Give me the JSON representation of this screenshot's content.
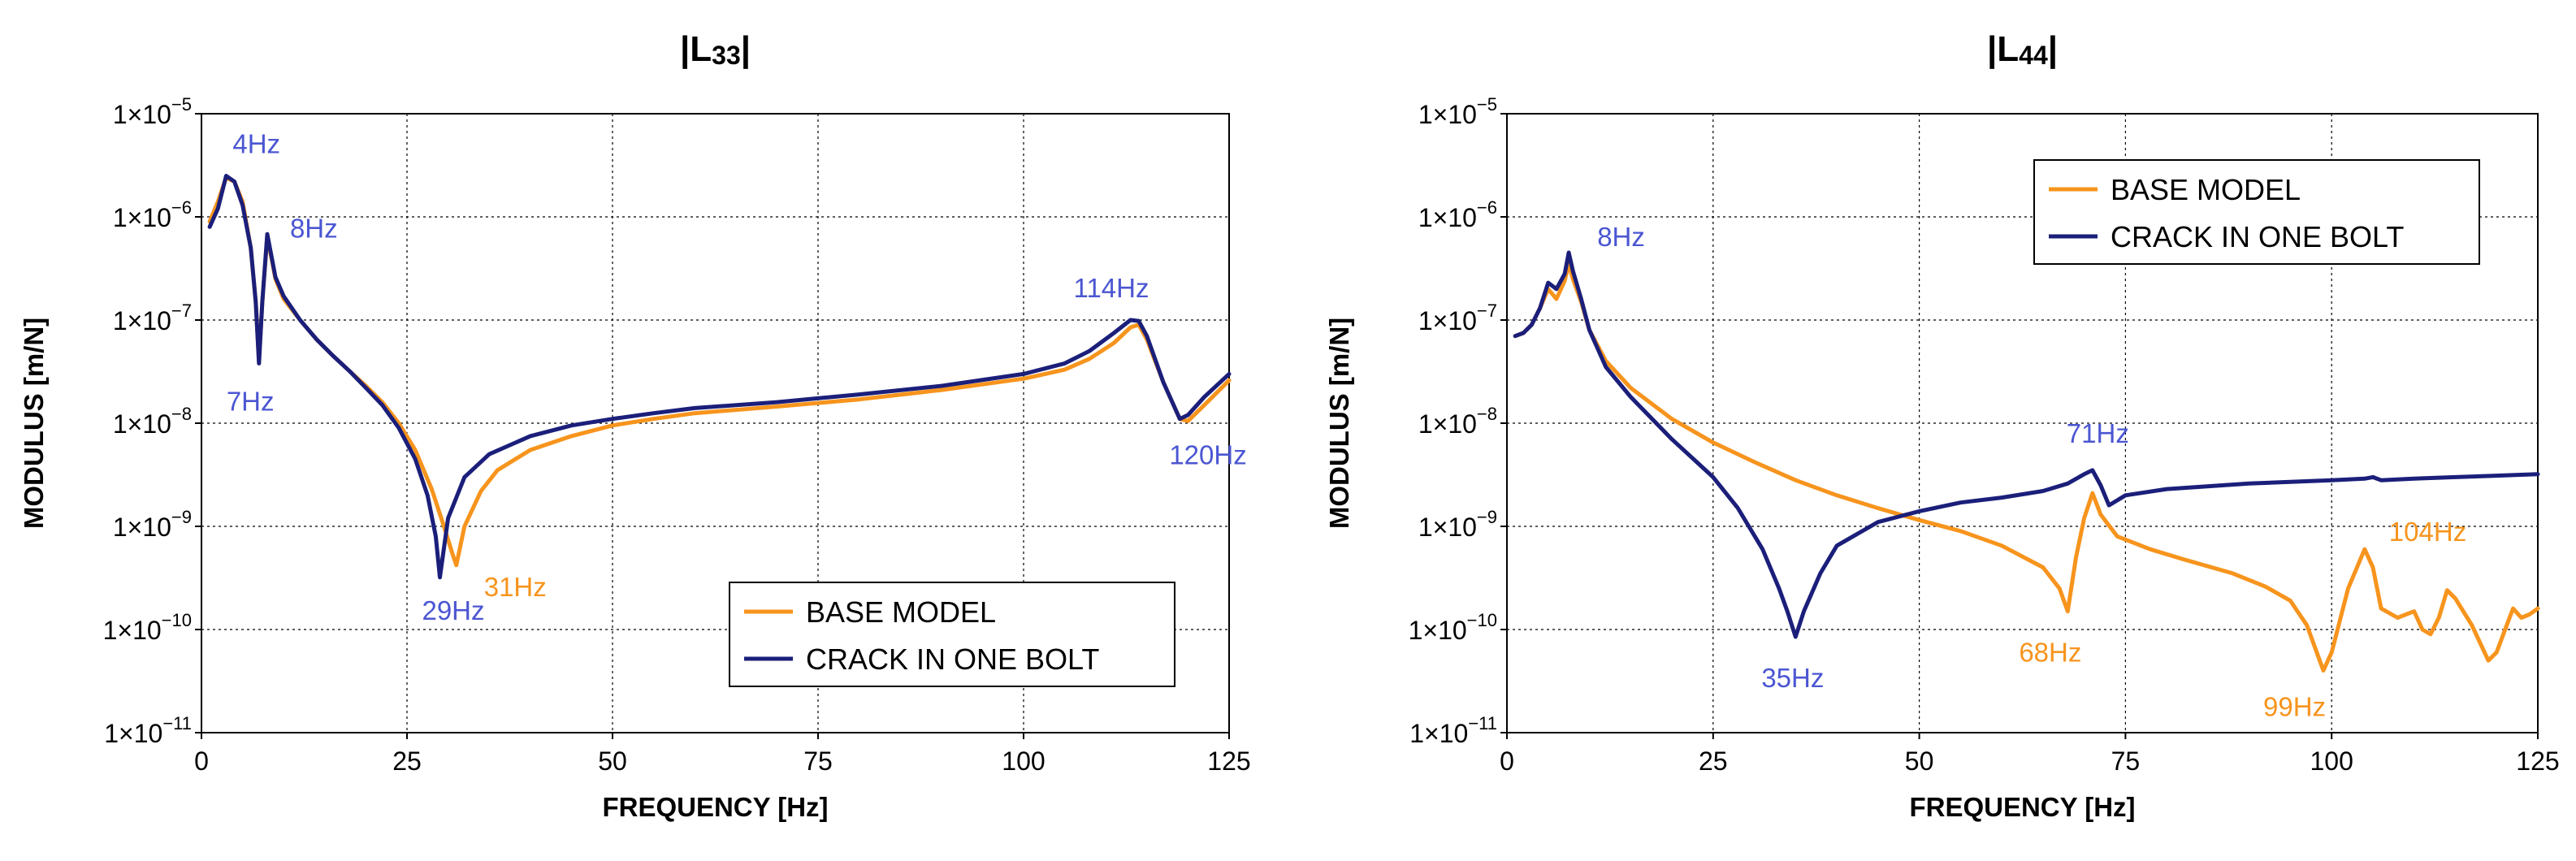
{
  "chart_data": [
    {
      "type": "line",
      "title": {
        "letter": "L",
        "subscript": "33"
      },
      "xlabel": "FREQUENCY [Hz]",
      "ylabel": "MODULUS [m/N]",
      "yscale": "log",
      "xlim": [
        0,
        125
      ],
      "ylim_exp": [
        -11,
        -5
      ],
      "xticks": [
        "0",
        "25",
        "50",
        "75",
        "100",
        "125"
      ],
      "yticks": [
        {
          "base": "1×10",
          "exp": "-5"
        },
        {
          "base": "1×10",
          "exp": "-6"
        },
        {
          "base": "1×10",
          "exp": "-7"
        },
        {
          "base": "1×10",
          "exp": "-8"
        },
        {
          "base": "1×10",
          "exp": "-9"
        },
        {
          "base": "1×10",
          "exp": "-10"
        },
        {
          "base": "1×10",
          "exp": "-11"
        }
      ],
      "grid": true,
      "legend_position": "bottom-right",
      "series": [
        {
          "name": "BASE MODEL",
          "color": "#F7941D",
          "points": [
            [
              1,
              9e-07
            ],
            [
              2,
              1.4e-06
            ],
            [
              3,
              2.4e-06
            ],
            [
              4,
              2.2e-06
            ],
            [
              5,
              1.4e-06
            ],
            [
              6,
              5e-07
            ],
            [
              6.6,
              1.5e-07
            ],
            [
              7,
              4e-08
            ],
            [
              7.4,
              1.5e-07
            ],
            [
              8,
              6.5e-07
            ],
            [
              9,
              2.5e-07
            ],
            [
              10,
              1.6e-07
            ],
            [
              12,
              1e-07
            ],
            [
              14,
              6.5e-08
            ],
            [
              16,
              4.5e-08
            ],
            [
              18,
              3.2e-08
            ],
            [
              20,
              2.3e-08
            ],
            [
              22,
              1.6e-08
            ],
            [
              24,
              1e-08
            ],
            [
              26,
              5.5e-09
            ],
            [
              28,
              2.3e-09
            ],
            [
              29.5,
              1e-09
            ],
            [
              30.5,
              5.5e-10
            ],
            [
              31,
              4.2e-10
            ],
            [
              32,
              1e-09
            ],
            [
              34,
              2.2e-09
            ],
            [
              36,
              3.5e-09
            ],
            [
              40,
              5.5e-09
            ],
            [
              45,
              7.5e-09
            ],
            [
              50,
              9.5e-09
            ],
            [
              55,
              1.1e-08
            ],
            [
              60,
              1.25e-08
            ],
            [
              70,
              1.45e-08
            ],
            [
              80,
              1.7e-08
            ],
            [
              90,
              2.1e-08
            ],
            [
              100,
              2.7e-08
            ],
            [
              105,
              3.3e-08
            ],
            [
              108,
              4.2e-08
            ],
            [
              111,
              6e-08
            ],
            [
              113,
              8.5e-08
            ],
            [
              114,
              9e-08
            ],
            [
              115,
              6.5e-08
            ],
            [
              117,
              2.5e-08
            ],
            [
              119,
              1.1e-08
            ],
            [
              120,
              1.05e-08
            ],
            [
              122,
              1.5e-08
            ],
            [
              125,
              2.6e-08
            ]
          ]
        },
        {
          "name": "CRACK IN ONE BOLT",
          "color": "#1B1F7A",
          "points": [
            [
              1,
              8e-07
            ],
            [
              2,
              1.2e-06
            ],
            [
              3,
              2.5e-06
            ],
            [
              4,
              2.2e-06
            ],
            [
              5,
              1.3e-06
            ],
            [
              6,
              5e-07
            ],
            [
              6.6,
              1.5e-07
            ],
            [
              7,
              3.8e-08
            ],
            [
              7.4,
              1.5e-07
            ],
            [
              8,
              6.8e-07
            ],
            [
              9,
              2.6e-07
            ],
            [
              10,
              1.7e-07
            ],
            [
              12,
              1e-07
            ],
            [
              14,
              6.5e-08
            ],
            [
              16,
              4.5e-08
            ],
            [
              18,
              3.2e-08
            ],
            [
              20,
              2.2e-08
            ],
            [
              22,
              1.5e-08
            ],
            [
              24,
              9e-09
            ],
            [
              26,
              4.5e-09
            ],
            [
              27.5,
              2e-09
            ],
            [
              28.5,
              8e-10
            ],
            [
              29,
              3.2e-10
            ],
            [
              30,
              1.2e-09
            ],
            [
              32,
              3e-09
            ],
            [
              35,
              5e-09
            ],
            [
              40,
              7.5e-09
            ],
            [
              45,
              9.5e-09
            ],
            [
              50,
              1.1e-08
            ],
            [
              55,
              1.25e-08
            ],
            [
              60,
              1.4e-08
            ],
            [
              70,
              1.6e-08
            ],
            [
              80,
              1.9e-08
            ],
            [
              90,
              2.3e-08
            ],
            [
              100,
              3e-08
            ],
            [
              105,
              3.8e-08
            ],
            [
              108,
              5e-08
            ],
            [
              111,
              7.5e-08
            ],
            [
              113,
              1e-07
            ],
            [
              114,
              9.8e-08
            ],
            [
              115,
              7e-08
            ],
            [
              117,
              2.5e-08
            ],
            [
              119,
              1.1e-08
            ],
            [
              120,
              1.2e-08
            ],
            [
              122,
              1.8e-08
            ],
            [
              125,
              3e-08
            ]
          ]
        }
      ],
      "annotations": [
        {
          "text": "4Hz",
          "x": 3,
          "y": 2.5e-06,
          "series": 1
        },
        {
          "text": "8Hz",
          "x": 8,
          "y": 6.8e-07,
          "series": 1
        },
        {
          "text": "7Hz",
          "x": 7,
          "y": 3.8e-08,
          "series": 1
        },
        {
          "text": "114Hz",
          "x": 113,
          "y": 1e-07,
          "series": 1
        },
        {
          "text": "120Hz",
          "x": 119.5,
          "y": 1.1e-08,
          "series": 1
        },
        {
          "text": "29Hz",
          "x": 29,
          "y": 3.2e-10,
          "series": 1
        },
        {
          "text": "31Hz",
          "x": 31,
          "y": 4.2e-10,
          "series": 0
        }
      ]
    },
    {
      "type": "line",
      "title": {
        "letter": "L",
        "subscript": "44"
      },
      "xlabel": "FREQUENCY [Hz]",
      "ylabel": "MODULUS [m/N]",
      "yscale": "log",
      "xlim": [
        0,
        125
      ],
      "ylim_exp": [
        -11,
        -5
      ],
      "xticks": [
        "0",
        "25",
        "50",
        "75",
        "100",
        "125"
      ],
      "yticks": [
        {
          "base": "1×10",
          "exp": "-5"
        },
        {
          "base": "1×10",
          "exp": "-6"
        },
        {
          "base": "1×10",
          "exp": "-7"
        },
        {
          "base": "1×10",
          "exp": "-8"
        },
        {
          "base": "1×10",
          "exp": "-9"
        },
        {
          "base": "1×10",
          "exp": "-10"
        },
        {
          "base": "1×10",
          "exp": "-11"
        }
      ],
      "grid": true,
      "legend_position": "top-right",
      "series": [
        {
          "name": "BASE MODEL",
          "color": "#F7941D",
          "points": [
            [
              1,
              7e-08
            ],
            [
              2,
              7.5e-08
            ],
            [
              3,
              9e-08
            ],
            [
              4,
              1.3e-07
            ],
            [
              5,
              2e-07
            ],
            [
              6,
              1.6e-07
            ],
            [
              7,
              2.4e-07
            ],
            [
              7.5,
              3.5e-07
            ],
            [
              8,
              2.5e-07
            ],
            [
              9,
              1.5e-07
            ],
            [
              10,
              8e-08
            ],
            [
              12,
              4e-08
            ],
            [
              15,
              2.2e-08
            ],
            [
              20,
              1.1e-08
            ],
            [
              25,
              6.5e-09
            ],
            [
              30,
              4.2e-09
            ],
            [
              35,
              2.8e-09
            ],
            [
              40,
              2e-09
            ],
            [
              45,
              1.5e-09
            ],
            [
              50,
              1.15e-09
            ],
            [
              55,
              9e-10
            ],
            [
              60,
              6.5e-10
            ],
            [
              65,
              4e-10
            ],
            [
              67,
              2.5e-10
            ],
            [
              68,
              1.5e-10
            ],
            [
              69,
              5e-10
            ],
            [
              70,
              1.2e-09
            ],
            [
              71,
              2.1e-09
            ],
            [
              72,
              1.3e-09
            ],
            [
              74,
              8e-10
            ],
            [
              78,
              6e-10
            ],
            [
              82,
              4.8e-10
            ],
            [
              88,
              3.5e-10
            ],
            [
              92,
              2.6e-10
            ],
            [
              95,
              1.9e-10
            ],
            [
              97,
              1.1e-10
            ],
            [
              99,
              4e-11
            ],
            [
              100,
              6e-11
            ],
            [
              102,
              2.5e-10
            ],
            [
              104,
              6e-10
            ],
            [
              105,
              4e-10
            ],
            [
              106,
              1.6e-10
            ],
            [
              108,
              1.3e-10
            ],
            [
              110,
              1.5e-10
            ],
            [
              111,
              1e-10
            ],
            [
              112,
              9e-11
            ],
            [
              113,
              1.3e-10
            ],
            [
              114,
              2.4e-10
            ],
            [
              115,
              2e-10
            ],
            [
              117,
              1.1e-10
            ],
            [
              119,
              5e-11
            ],
            [
              120,
              6e-11
            ],
            [
              122,
              1.6e-10
            ],
            [
              123,
              1.3e-10
            ],
            [
              124,
              1.4e-10
            ],
            [
              125,
              1.6e-10
            ]
          ]
        },
        {
          "name": "CRACK IN ONE BOLT",
          "color": "#1B1F7A",
          "points": [
            [
              1,
              7e-08
            ],
            [
              2,
              7.5e-08
            ],
            [
              3,
              9e-08
            ],
            [
              4,
              1.3e-07
            ],
            [
              5,
              2.3e-07
            ],
            [
              6,
              2e-07
            ],
            [
              7,
              2.8e-07
            ],
            [
              7.5,
              4.5e-07
            ],
            [
              8,
              3e-07
            ],
            [
              9,
              1.6e-07
            ],
            [
              10,
              8e-08
            ],
            [
              12,
              3.5e-08
            ],
            [
              15,
              1.8e-08
            ],
            [
              20,
              7e-09
            ],
            [
              25,
              3e-09
            ],
            [
              28,
              1.5e-09
            ],
            [
              31,
              6e-10
            ],
            [
              33,
              2.5e-10
            ],
            [
              34,
              1.5e-10
            ],
            [
              35,
              8.5e-11
            ],
            [
              36,
              1.5e-10
            ],
            [
              38,
              3.5e-10
            ],
            [
              40,
              6.5e-10
            ],
            [
              45,
              1.1e-09
            ],
            [
              50,
              1.4e-09
            ],
            [
              55,
              1.7e-09
            ],
            [
              60,
              1.9e-09
            ],
            [
              65,
              2.2e-09
            ],
            [
              68,
              2.6e-09
            ],
            [
              70,
              3.2e-09
            ],
            [
              71,
              3.5e-09
            ],
            [
              72,
              2.5e-09
            ],
            [
              73,
              1.6e-09
            ],
            [
              75,
              2e-09
            ],
            [
              80,
              2.3e-09
            ],
            [
              90,
              2.6e-09
            ],
            [
              100,
              2.8e-09
            ],
            [
              104,
              2.9e-09
            ],
            [
              105,
              3e-09
            ],
            [
              106,
              2.8e-09
            ],
            [
              110,
              2.9e-09
            ],
            [
              115,
              3e-09
            ],
            [
              120,
              3.1e-09
            ],
            [
              125,
              3.2e-09
            ]
          ]
        }
      ],
      "annotations": [
        {
          "text": "8Hz",
          "x": 8,
          "y": 4.5e-07,
          "series": 1
        },
        {
          "text": "71Hz",
          "x": 71,
          "y": 3.5e-09,
          "series": 1
        },
        {
          "text": "35Hz",
          "x": 35,
          "y": 8.5e-11,
          "series": 1
        },
        {
          "text": "68Hz",
          "x": 68,
          "y": 1.5e-10,
          "series": 0
        },
        {
          "text": "99Hz",
          "x": 99,
          "y": 4e-11,
          "series": 0
        },
        {
          "text": "104Hz",
          "x": 104,
          "y": 6e-10,
          "series": 0
        }
      ]
    }
  ]
}
